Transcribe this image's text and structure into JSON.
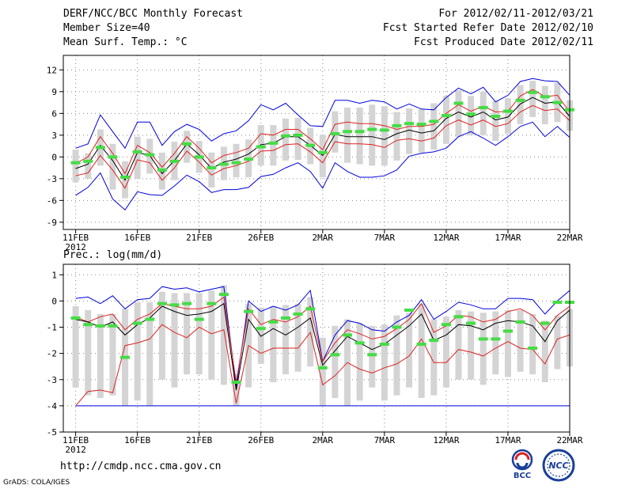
{
  "header": {
    "title": "DERF/NCC/BCC Monthly Forecast",
    "member_size": "Member Size=40",
    "variable": "Mean Surf. Temp.: °C",
    "period": "For 2012/02/11-2012/03/21",
    "started_refer": "Fcst Started Refer Date 2012/02/10",
    "produced": "Fcst Produced Date 2012/02/11"
  },
  "footer": {
    "url": "http://cmdp.ncc.cma.gov.cn",
    "grads": "GrADS: COLA/IGES",
    "logo_bcc": "BCC",
    "logo_ncc": "NCC"
  },
  "colors": {
    "bar": "#d4d4d4",
    "obs": "#44dd44",
    "minmax": "#0000dd",
    "spread": "#dd2222",
    "mean": "#000000",
    "grid": "#888888"
  },
  "chart_data": [
    {
      "type": "line",
      "name": "temperature",
      "title": "Mean Surf. Temp.: °C",
      "ylabel": "°C",
      "ylim": [
        -10,
        14
      ],
      "yticks": [
        12,
        9,
        6,
        3,
        0,
        -3,
        -6,
        -9
      ],
      "xlim": [
        0,
        41
      ],
      "xtick_pos": [
        1,
        6,
        11,
        16,
        21,
        26,
        31,
        36,
        41
      ],
      "xtick_labels": [
        "11FEB",
        "16FEB",
        "21FEB",
        "26FEB",
        "2MAR",
        "7MAR",
        "12MAR",
        "17MAR",
        "22MAR"
      ],
      "xtick_sublabel": "2012",
      "days": 40,
      "series": [
        {
          "name": "max",
          "values": [
            1.2,
            1.8,
            5.8,
            3.5,
            1.2,
            4.8,
            4.8,
            1.6,
            3.5,
            4.5,
            3.8,
            2.2,
            3.2,
            3.6,
            5,
            7.2,
            6.5,
            7.4,
            5.8,
            4.3,
            4.2,
            7.8,
            7.8,
            7.4,
            7.8,
            7.6,
            6.6,
            7.3,
            6.6,
            6.5,
            8.2,
            9.5,
            8.7,
            9.6,
            7.6,
            8.5,
            10.4,
            10.8,
            10.5,
            10.4,
            8.5
          ]
        },
        {
          "name": "spread_upper",
          "values": [
            -0.9,
            0,
            2.8,
            0.5,
            -2.3,
            1.6,
            0.6,
            -1.4,
            0.5,
            2.8,
            1.2,
            -0.8,
            0.2,
            0.6,
            1.2,
            3.2,
            3,
            3.8,
            3.8,
            2.5,
            1,
            4.5,
            4.8,
            4.6,
            4.6,
            4.3,
            3.8,
            4.2,
            4.2,
            4.5,
            6,
            7.2,
            6.3,
            7,
            6.2,
            6.3,
            8.4,
            9.3,
            8.3,
            8.5,
            6.2
          ]
        },
        {
          "name": "mean",
          "values": [
            -1.6,
            -1,
            1.6,
            -0.5,
            -3.2,
            0.6,
            0.2,
            -2.3,
            -0.5,
            1.8,
            0.3,
            -1.6,
            -0.7,
            -0.3,
            0.4,
            1.7,
            1.9,
            2.8,
            2.8,
            1.6,
            0.2,
            3.1,
            2.8,
            2.8,
            2.8,
            2.4,
            3.2,
            3.7,
            3.3,
            3.6,
            5.3,
            6.2,
            5.5,
            6.2,
            5.1,
            5.5,
            7.3,
            8.2,
            7.4,
            7.6,
            5.6
          ]
        },
        {
          "name": "spread_lower",
          "values": [
            -2.6,
            -2.2,
            0.2,
            -1.8,
            -4.3,
            -0.4,
            -0.8,
            -3.2,
            -1.5,
            0.8,
            -0.7,
            -2.5,
            -1.6,
            -1.2,
            -0.6,
            0.8,
            0.9,
            1.7,
            1.8,
            0.7,
            -0.8,
            2.1,
            1.8,
            1.8,
            1.7,
            1.3,
            2.3,
            2.5,
            2.2,
            2.6,
            4.3,
            5.1,
            4.4,
            5.1,
            4.2,
            4.6,
            6.2,
            7.1,
            6.4,
            6.6,
            5
          ]
        },
        {
          "name": "min",
          "values": [
            -5.3,
            -4.2,
            -2.2,
            -5.8,
            -7.3,
            -4.8,
            -5.2,
            -5.3,
            -4,
            -2.5,
            -3.4,
            -4.9,
            -4.5,
            -4.5,
            -4.2,
            -2.7,
            -2.4,
            -1.5,
            -0.8,
            -2,
            -4.3,
            -0.8,
            -2,
            -2.8,
            -2.8,
            -2.6,
            -1.8,
            0.1,
            0.5,
            0.7,
            1.2,
            2.8,
            3.5,
            2.6,
            1.6,
            2.8,
            4.2,
            4.8,
            2.8,
            4.2,
            2.7
          ]
        },
        {
          "name": "observed",
          "values": [
            -0.8,
            -0.6,
            1.3,
            0,
            -2.8,
            0.7,
            0.3,
            -1.8,
            -0.6,
            1.8,
            0,
            -1.5,
            -1,
            -0.8,
            -0.3,
            1.4,
            1.9,
            2.9,
            3,
            1.6,
            0.6,
            3.2,
            3.5,
            3.5,
            3.8,
            3.7,
            4.3,
            4.6,
            4.5,
            4.9,
            5.7,
            7.4,
            5.9,
            6.8,
            5.6,
            6.3,
            7.8,
            8.9,
            8.3,
            7.5,
            6.5
          ]
        },
        {
          "name": "bar_high",
          "values": [
            1,
            0.5,
            3.8,
            1.8,
            -0.6,
            2.8,
            2.5,
            0.6,
            2.1,
            3.6,
            2.2,
            0.6,
            1.4,
            1.8,
            2.4,
            4.4,
            4.4,
            5.3,
            5.4,
            4,
            3,
            6.3,
            6.8,
            6.8,
            7.2,
            7,
            6.2,
            6.7,
            6.6,
            7.4,
            8.4,
            9.2,
            8.4,
            9,
            7.7,
            8.1,
            9.9,
            10.5,
            9.8,
            10.2,
            7.8
          ]
        },
        {
          "name": "bar_low",
          "values": [
            -3.5,
            -3,
            -1.2,
            -4.5,
            -5.7,
            -3,
            -2.3,
            -4.5,
            -3.2,
            -0.8,
            -2.2,
            -4.2,
            -3.2,
            -2.8,
            -2.8,
            -1.2,
            -1.2,
            -0.5,
            -0.4,
            -1,
            -2.8,
            0.6,
            -0.8,
            -1,
            -1.2,
            -1.2,
            -0.5,
            0.4,
            0.6,
            1,
            1.8,
            2.8,
            3,
            3,
            2.2,
            3.2,
            4.5,
            5.5,
            4.5,
            4.8,
            3.6
          ]
        }
      ]
    },
    {
      "type": "line",
      "name": "precipitation",
      "title": "Prec.: log(mm/d)",
      "ylabel": "log(mm/d)",
      "ylim": [
        -5,
        1.4
      ],
      "yticks": [
        1,
        0,
        -1,
        -2,
        -3,
        -4,
        -5
      ],
      "xlim": [
        0,
        41
      ],
      "xtick_pos": [
        1,
        6,
        11,
        16,
        21,
        26,
        31,
        36,
        41
      ],
      "xtick_labels": [
        "11FEB",
        "16FEB",
        "21FEB",
        "26FEB",
        "2MAR",
        "7MAR",
        "12MAR",
        "17MAR",
        "22MAR"
      ],
      "xtick_sublabel": "2012",
      "days": 40,
      "series": [
        {
          "name": "max",
          "values": [
            0.1,
            0.15,
            -0.1,
            0.2,
            -0.3,
            0.05,
            0.1,
            0.55,
            0.45,
            0.5,
            0.35,
            0.45,
            0.55,
            -3.3,
            0,
            -0.4,
            -0.2,
            -0.35,
            -0.15,
            0.4,
            -2.3,
            -1.3,
            -0.75,
            -0.85,
            -1.1,
            -1.15,
            -0.8,
            -0.55,
            0.05,
            -0.7,
            -0.4,
            -0.05,
            -0.15,
            -0.3,
            -0.3,
            0.1,
            0.1,
            0.05,
            -0.5,
            0,
            0.4
          ]
        },
        {
          "name": "spread_upper",
          "values": [
            -0.6,
            -0.8,
            -0.6,
            -0.5,
            -1.1,
            -0.7,
            -0.5,
            -0.1,
            -0.2,
            -0.3,
            -0.3,
            -0.2,
            0.15,
            -3.1,
            -0.3,
            -0.9,
            -0.7,
            -0.8,
            -0.6,
            -0.2,
            -2.3,
            -1.6,
            -1.1,
            -1.25,
            -1.45,
            -1.35,
            -1.05,
            -0.7,
            -0.1,
            -1.2,
            -0.95,
            -0.55,
            -0.6,
            -0.8,
            -0.7,
            -0.4,
            -0.3,
            -0.55,
            -1.1,
            -0.55,
            -0.2
          ]
        },
        {
          "name": "mean",
          "values": [
            -0.7,
            -0.8,
            -1,
            -0.8,
            -1.3,
            -0.9,
            -0.65,
            -0.2,
            -0.4,
            -0.55,
            -0.5,
            -0.4,
            -0.1,
            -3.4,
            -0.7,
            -1.35,
            -1.05,
            -1.3,
            -1,
            -0.65,
            -2.45,
            -1.9,
            -1.35,
            -1.6,
            -1.85,
            -1.65,
            -1.3,
            -0.95,
            -0.5,
            -1.5,
            -1.3,
            -0.9,
            -0.95,
            -1.1,
            -0.85,
            -0.75,
            -0.8,
            -0.95,
            -1.55,
            -0.75,
            -0.35
          ]
        },
        {
          "name": "spread_lower",
          "values": [
            -4,
            -3.45,
            -3.4,
            -3.5,
            -1.7,
            -1.6,
            -1.45,
            -0.9,
            -1.2,
            -1.4,
            -1,
            -1.25,
            -1.1,
            -3.9,
            -1.7,
            -2,
            -1.8,
            -1.8,
            -1.8,
            -1.2,
            -3.2,
            -2.85,
            -2.35,
            -2.6,
            -2.75,
            -2.55,
            -2.4,
            -2.1,
            -1.45,
            -2.35,
            -2.35,
            -1.85,
            -1.95,
            -2.1,
            -1.8,
            -1.55,
            -1.8,
            -1.85,
            -2.4,
            -1.45,
            -1.3
          ]
        },
        {
          "name": "min",
          "values": [
            -4,
            -4,
            -4,
            -4,
            -4,
            -4,
            -4,
            -4,
            -4,
            -4,
            -4,
            -4,
            -4,
            -4,
            -4,
            -4,
            -4,
            -4,
            -4,
            -4,
            -4,
            -4,
            -4,
            -4,
            -4,
            -4,
            -4,
            -4,
            -4,
            -4,
            -4,
            -4,
            -4,
            -4,
            -4,
            -4,
            -4,
            -4,
            -4,
            -4,
            -4
          ]
        },
        {
          "name": "observed",
          "values": [
            -0.65,
            -0.9,
            -0.95,
            -0.95,
            -2.15,
            -0.85,
            -0.7,
            -0.1,
            -0.15,
            -0.1,
            -0.7,
            -0.1,
            0.25,
            -3.1,
            -0.4,
            -1.05,
            -0.8,
            -0.65,
            -0.5,
            -0.3,
            -2.55,
            -2.05,
            -1.3,
            -1.6,
            -2.05,
            -1.65,
            -1.0,
            -0.35,
            -1.65,
            -1.5,
            -0.9,
            -0.6,
            -0.85,
            -1.45,
            -1.45,
            -1.15,
            -0.8,
            -1.8,
            -0.85,
            -0.05,
            -0.05
          ]
        },
        {
          "name": "bar_high",
          "values": [
            -0.2,
            -0.35,
            -0.5,
            -0.5,
            -0.3,
            -0.05,
            -0.05,
            0.35,
            0.3,
            0.3,
            0.3,
            0.4,
            0.6,
            -2.8,
            -0.1,
            -0.25,
            -0.2,
            -0.15,
            -0.1,
            0.15,
            -1.4,
            -0.95,
            -0.7,
            -0.85,
            -0.95,
            -0.9,
            -0.55,
            -0.45,
            -0.1,
            -0.7,
            -0.6,
            -0.35,
            -0.4,
            -0.45,
            -0.4,
            -0.35,
            -0.35,
            -0.5,
            -0.75,
            -0.55,
            -0.3
          ]
        },
        {
          "name": "bar_low",
          "values": [
            -3.3,
            -3.6,
            -3.7,
            -3.6,
            -4,
            -3.8,
            -4,
            -3,
            -3.3,
            -2.8,
            -2.8,
            -3,
            -3.2,
            -4,
            -3.3,
            -2.4,
            -3.1,
            -2.8,
            -2.7,
            -2.5,
            -4,
            -3.7,
            -4,
            -3.8,
            -3.3,
            -3.8,
            -3.6,
            -3.3,
            -3.7,
            -3.6,
            -3.3,
            -3,
            -3,
            -3.2,
            -2.8,
            -2.9,
            -2.7,
            -2.8,
            -3.1,
            -2.6,
            -2.5
          ]
        }
      ]
    }
  ]
}
